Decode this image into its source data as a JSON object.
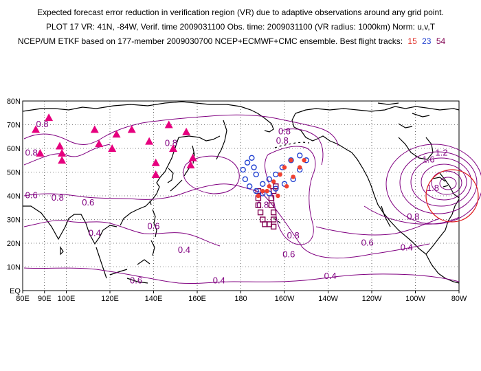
{
  "title": {
    "line1": "Expected forecast error reduction in verification region (VR) due to adaptive observations around any grid point.",
    "line2": "PLOT 17 VR: 41N, -84W, Verif. time 2009031100 Obs. time: 2009031100 (VR radius: 1000km) Norm: u,v,T",
    "line3_prefix": "NCEP/UM ETKF based on 177-member 2009030700 NCEP+ECMWF+CMC ensemble. Best flight tracks:",
    "track_labels": [
      {
        "text": "15",
        "color": "#e0302a"
      },
      {
        "text": "23",
        "color": "#2040d0"
      },
      {
        "text": "54",
        "color": "#800050"
      }
    ]
  },
  "colors": {
    "contour": "#800080",
    "coast": "#000000",
    "triangles": "#e6007e",
    "vr_circle": "#e02020",
    "track15": "#f04030",
    "track23": "#2040d0",
    "track54": "#800050"
  },
  "map": {
    "lon_range": [
      80,
      280
    ],
    "lat_range": [
      0,
      80
    ],
    "x_ticks": [
      "80E",
      "90E",
      "100E",
      "120E",
      "140E",
      "160E",
      "180",
      "160W",
      "140W",
      "120W",
      "100W",
      "80W"
    ],
    "x_tick_lons": [
      80,
      90,
      100,
      120,
      140,
      160,
      180,
      200,
      220,
      240,
      260,
      280
    ],
    "y_ticks": [
      "EQ",
      "10N",
      "20N",
      "30N",
      "40N",
      "50N",
      "60N",
      "70N",
      "80N"
    ],
    "y_tick_lats": [
      0,
      10,
      20,
      30,
      40,
      50,
      60,
      70,
      80
    ],
    "verification_region": {
      "lat": 41,
      "lon": -84,
      "radius_km": 1000
    }
  },
  "contour_labels": [
    {
      "text": "0.8",
      "lon": 89,
      "lat": 69
    },
    {
      "text": "0.8",
      "lon": 84,
      "lat": 57
    },
    {
      "text": "0.6",
      "lon": 84,
      "lat": 39
    },
    {
      "text": "0.8",
      "lon": 96,
      "lat": 38
    },
    {
      "text": "0.6",
      "lon": 110,
      "lat": 36
    },
    {
      "text": "0.4",
      "lon": 113,
      "lat": 23
    },
    {
      "text": "0.6",
      "lon": 140,
      "lat": 26
    },
    {
      "text": "0.8",
      "lon": 148,
      "lat": 61
    },
    {
      "text": "0.4",
      "lon": 154,
      "lat": 16
    },
    {
      "text": "0.6",
      "lon": 132,
      "lat": 3
    },
    {
      "text": "0.4",
      "lon": 170,
      "lat": 3
    },
    {
      "text": "0.8",
      "lon": 200,
      "lat": 66
    },
    {
      "text": "0.8",
      "lon": 199,
      "lat": 62
    },
    {
      "text": "0.8",
      "lon": 190,
      "lat": 35
    },
    {
      "text": "0.8",
      "lon": 204,
      "lat": 22
    },
    {
      "text": "0.6",
      "lon": 202,
      "lat": 14
    },
    {
      "text": "0.6",
      "lon": 238,
      "lat": 19
    },
    {
      "text": "0.4",
      "lon": 221,
      "lat": 5
    },
    {
      "text": "0.4",
      "lon": 256,
      "lat": 17
    },
    {
      "text": "0.8",
      "lon": 259,
      "lat": 30
    },
    {
      "text": "1.6",
      "lon": 266,
      "lat": 54
    },
    {
      "text": "1.2",
      "lon": 272,
      "lat": 57
    },
    {
      "text": "1.8",
      "lon": 268,
      "lat": 42
    }
  ],
  "sites": [
    [
      86,
      68
    ],
    [
      88,
      58
    ],
    [
      92,
      73
    ],
    [
      97,
      61
    ],
    [
      98,
      58
    ],
    [
      98,
      55
    ],
    [
      113,
      68
    ],
    [
      115,
      62
    ],
    [
      121,
      60
    ],
    [
      123,
      66
    ],
    [
      130,
      68
    ],
    [
      138,
      63
    ],
    [
      141,
      54
    ],
    [
      141,
      49
    ],
    [
      147,
      70
    ],
    [
      149,
      60
    ],
    [
      155,
      67
    ],
    [
      157,
      53
    ],
    [
      158,
      56
    ]
  ],
  "track15": [
    [
      203,
      55
    ],
    [
      200,
      52
    ],
    [
      198,
      49
    ],
    [
      195,
      46
    ],
    [
      193,
      44
    ],
    [
      190,
      42
    ],
    [
      188,
      40
    ],
    [
      192,
      42
    ],
    [
      197,
      40
    ],
    [
      201,
      44
    ],
    [
      204,
      48
    ],
    [
      207,
      52
    ],
    [
      209,
      55
    ]
  ],
  "track23": [
    [
      207,
      57
    ],
    [
      203,
      55
    ],
    [
      199,
      52
    ],
    [
      196,
      49
    ],
    [
      193,
      47
    ],
    [
      190,
      45
    ],
    [
      187,
      49
    ],
    [
      186,
      52
    ],
    [
      185,
      56
    ],
    [
      183,
      54
    ],
    [
      181,
      51
    ],
    [
      182,
      47
    ],
    [
      184,
      44
    ],
    [
      187,
      42
    ],
    [
      190,
      41
    ],
    [
      193,
      41
    ],
    [
      196,
      43
    ],
    [
      200,
      45
    ],
    [
      204,
      47
    ],
    [
      207,
      51
    ],
    [
      210,
      55
    ]
  ],
  "track54": [
    [
      188,
      42
    ],
    [
      188,
      39
    ],
    [
      188,
      36
    ],
    [
      189,
      33
    ],
    [
      190,
      30
    ],
    [
      191,
      28
    ],
    [
      193,
      28
    ],
    [
      195,
      27
    ],
    [
      195,
      30
    ],
    [
      195,
      33
    ],
    [
      194,
      36
    ],
    [
      194,
      39
    ],
    [
      195,
      42
    ],
    [
      196,
      44
    ]
  ]
}
